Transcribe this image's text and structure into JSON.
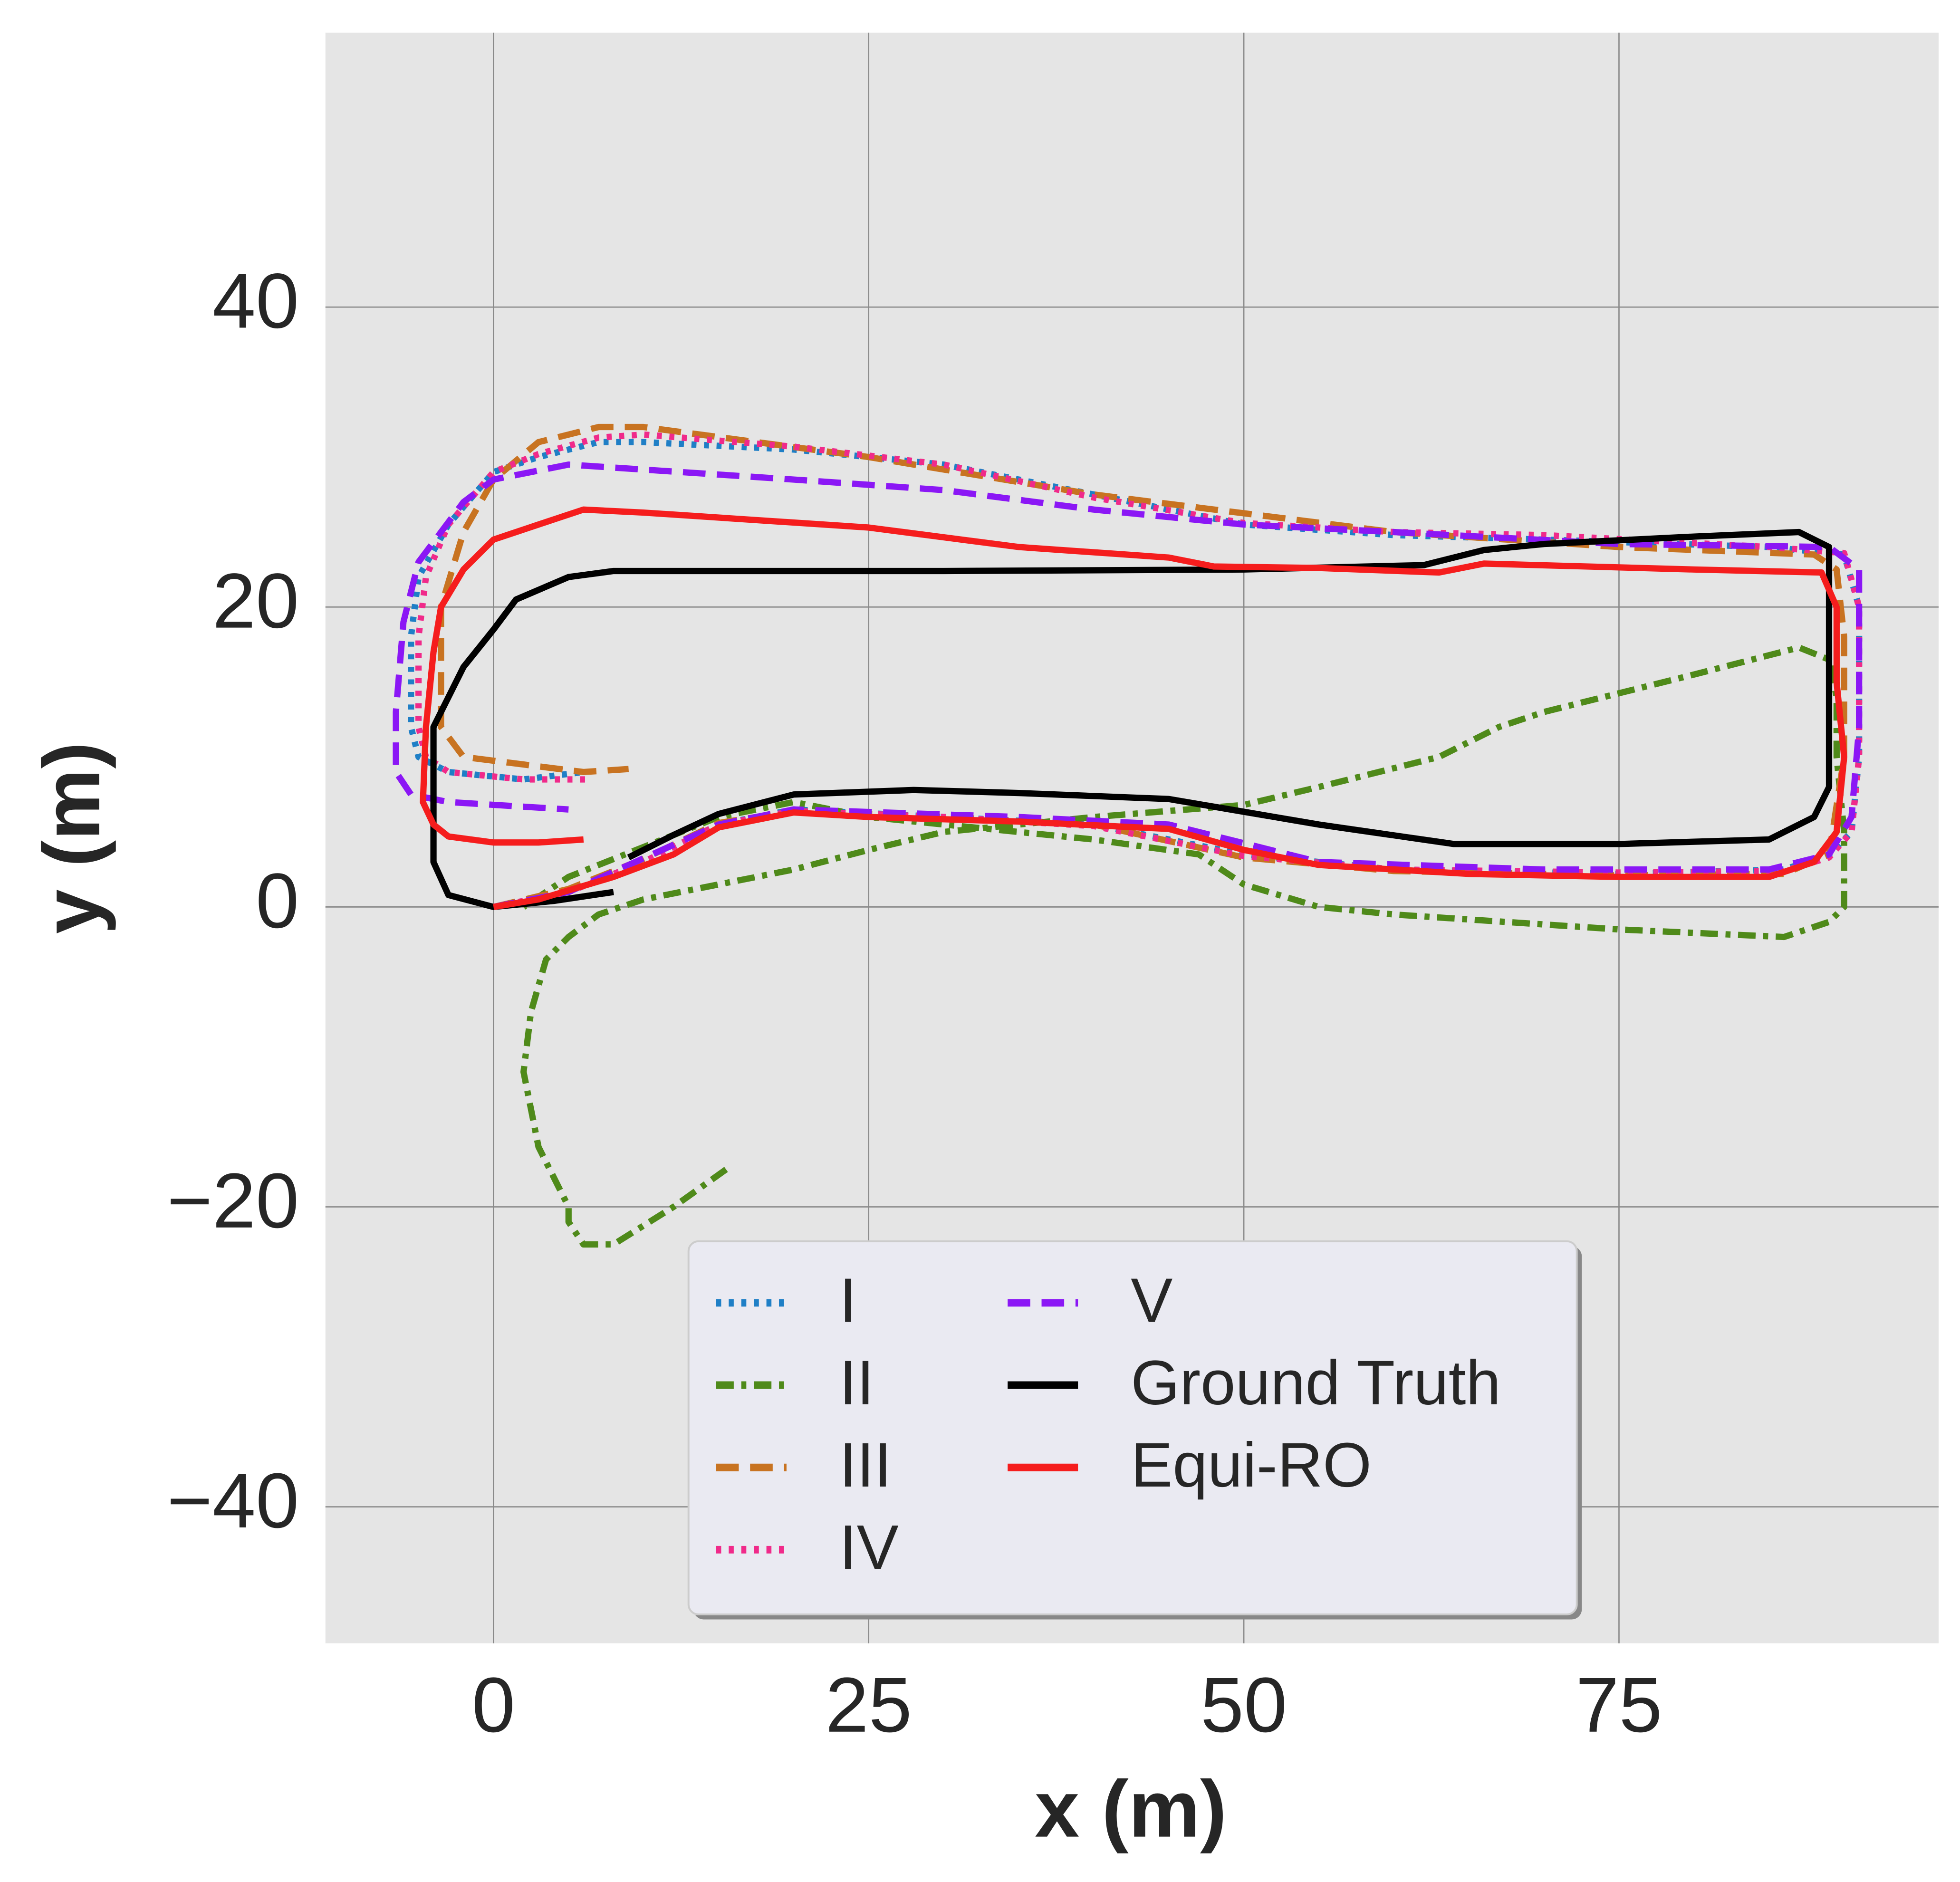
{
  "chart_data": {
    "type": "line",
    "x_label": "x (m)",
    "y_label": "y (m)",
    "xlim": [
      -11.2,
      96.3
    ],
    "ylim": [
      -49.1,
      58.3
    ],
    "xticks": [
      0,
      25,
      50,
      75
    ],
    "yticks": [
      {
        "value": -40,
        "label": "−40"
      },
      {
        "value": -20,
        "label": "−20"
      },
      0,
      20,
      40
    ],
    "grid": true,
    "legend_position": "lower center",
    "legend_columns": 2,
    "series": [
      {
        "name": "I",
        "color": "#1f7fc6",
        "style": "dotted",
        "x": [
          0,
          5,
          10,
          15,
          20,
          30,
          40,
          50,
          60,
          75,
          86,
          89,
          90.5,
          91,
          91,
          90,
          85,
          70,
          60,
          50,
          40,
          30,
          20,
          10,
          7,
          3,
          0,
          -3,
          -5,
          -5.5,
          -5.5,
          -5,
          -3,
          2,
          6
        ],
        "values": [
          0,
          1,
          3,
          5.5,
          6.5,
          6,
          5.5,
          3.5,
          2.5,
          2.2,
          2.5,
          3.5,
          5,
          10,
          20,
          23.5,
          24,
          24.5,
          24.8,
          25.5,
          27.5,
          29.5,
          30.5,
          31,
          31,
          30,
          29,
          25.5,
          22,
          18,
          12,
          10,
          9,
          8.5,
          9
        ]
      },
      {
        "name": "II",
        "color": "#4f8a1a",
        "style": "dashdot",
        "x": [
          15.5,
          12,
          8,
          6,
          5,
          5,
          3,
          2,
          2.5,
          3.5,
          5,
          7,
          10,
          15,
          20,
          25,
          30,
          35,
          40,
          50,
          55,
          63,
          67,
          70,
          80,
          87,
          89,
          89.5,
          89.5,
          90,
          90,
          89,
          86,
          75,
          60,
          55,
          50,
          47,
          40,
          35,
          25,
          20,
          15,
          10,
          5,
          2
        ],
        "values": [
          -17.5,
          -20,
          -22.5,
          -22.5,
          -21,
          -20,
          -16,
          -11,
          -7,
          -3.5,
          -2,
          -0.5,
          0.5,
          1.5,
          2.5,
          3.8,
          5,
          5.5,
          6,
          6.8,
          8,
          10,
          12,
          13,
          15.5,
          17.3,
          16.5,
          14,
          10,
          5,
          0,
          -1,
          -2,
          -1.5,
          -0.5,
          0,
          1.5,
          3.5,
          4.5,
          5,
          6,
          7,
          6,
          4,
          2,
          0
        ]
      },
      {
        "name": "III",
        "color": "#c87321",
        "style": "dashed",
        "x": [
          0,
          5,
          10,
          15,
          20,
          30,
          40,
          50,
          60,
          75,
          86,
          89,
          90,
          90,
          89.5,
          88,
          75,
          60,
          40,
          25,
          10,
          7,
          3,
          0,
          -2,
          -3.5,
          -3.5,
          -3.5,
          -2,
          2,
          6,
          9
        ],
        "values": [
          0,
          1.2,
          3.2,
          5.6,
          6.4,
          6,
          5.5,
          3.3,
          2.4,
          2.1,
          2.2,
          3.5,
          10,
          18,
          22.5,
          23.5,
          24,
          25,
          27.5,
          30,
          32,
          32,
          31,
          28.5,
          25,
          20,
          16,
          12,
          10,
          9.5,
          9,
          9.2
        ]
      },
      {
        "name": "IV",
        "color": "#f02a8a",
        "style": "dotted",
        "x": [
          0,
          5,
          10,
          15,
          20,
          30,
          40,
          50,
          60,
          75,
          86,
          89,
          90.5,
          91,
          91,
          90,
          85,
          70,
          60,
          50,
          40,
          30,
          20,
          10,
          7,
          3,
          0,
          -3,
          -4.5,
          -5,
          -5,
          -4.5,
          -3,
          2,
          6.5
        ],
        "values": [
          0,
          1,
          3,
          5.5,
          6.4,
          6,
          5.4,
          3.4,
          2.5,
          2.3,
          2.4,
          3.3,
          5,
          10,
          20,
          23.6,
          24,
          24.8,
          25,
          25.6,
          27.3,
          29.5,
          30.7,
          31.5,
          31.3,
          30.2,
          29,
          25.5,
          22,
          18,
          12,
          10,
          9,
          8.5,
          8.5
        ]
      },
      {
        "name": "V",
        "color": "#8b17f5",
        "style": "dashed",
        "x": [
          0,
          5,
          15,
          20,
          35,
          45,
          55,
          70,
          85,
          89,
          90.5,
          91,
          91,
          89,
          75,
          60,
          50,
          40,
          30,
          20,
          5,
          0,
          -2,
          -5,
          -6,
          -6.5,
          -6.5,
          -5.5,
          -3,
          5
        ],
        "values": [
          0,
          1,
          5.5,
          6.5,
          6,
          5.5,
          3,
          2.5,
          2.5,
          3.5,
          6,
          12,
          22.5,
          24,
          24.2,
          25,
          25.5,
          26.5,
          27.8,
          28.5,
          29.5,
          28.5,
          27,
          23,
          19,
          13,
          9,
          7.5,
          7,
          6.5
        ]
      },
      {
        "name": "Ground Truth",
        "color": "#000000",
        "style": "solid",
        "x": [
          8,
          4,
          0,
          -3,
          -4,
          -4,
          -2,
          0,
          1.5,
          5,
          8,
          30,
          50,
          62,
          66,
          70,
          80,
          87,
          89,
          89,
          88,
          85,
          75,
          64,
          55,
          45,
          35,
          28,
          20,
          15,
          12,
          9
        ],
        "values": [
          1,
          0.4,
          0,
          0.8,
          3,
          12,
          16,
          18.5,
          20.5,
          22,
          22.4,
          22.4,
          22.5,
          22.8,
          23.8,
          24.2,
          24.7,
          25,
          24,
          8,
          6,
          4.5,
          4.2,
          4.2,
          5.5,
          7.2,
          7.6,
          7.8,
          7.5,
          6.2,
          4.8,
          3.3
        ]
      },
      {
        "name": "Equi-RO",
        "color": "#f51d1d",
        "style": "solid",
        "x": [
          0,
          3,
          8,
          12,
          15,
          20,
          25,
          35,
          45,
          50,
          55,
          65,
          75,
          85,
          88,
          89.5,
          90,
          89.5,
          89.5,
          88.5,
          80,
          66,
          63,
          55,
          48,
          45,
          35,
          25,
          10,
          6,
          3,
          0,
          -2,
          -3.5,
          -4,
          -4.5,
          -4.7,
          -4,
          -3,
          0,
          3,
          6
        ],
        "values": [
          0,
          0.5,
          2,
          3.5,
          5.3,
          6.3,
          6,
          5.7,
          5.2,
          3.8,
          2.8,
          2.2,
          2,
          2,
          3,
          5,
          10,
          15,
          20,
          22.3,
          22.5,
          22.9,
          22.3,
          22.6,
          22.7,
          23.3,
          24,
          25.3,
          26.3,
          26.5,
          25.5,
          24.5,
          22.5,
          20,
          17,
          12,
          7,
          5.5,
          4.7,
          4.3,
          4.3,
          4.5
        ]
      }
    ]
  }
}
